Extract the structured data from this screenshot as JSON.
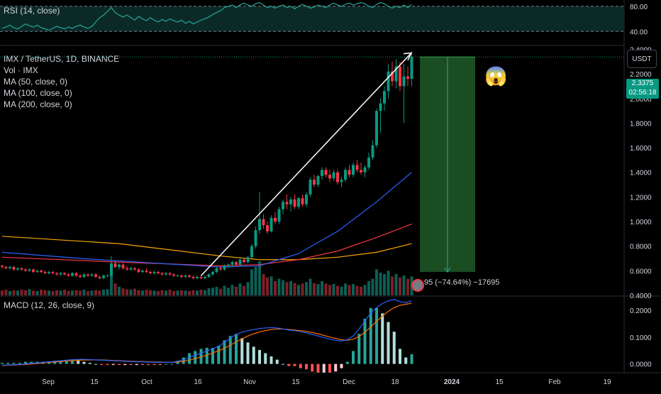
{
  "rsi": {
    "title": "RSI (14, close)",
    "levels": [
      "80.00",
      "40.00"
    ]
  },
  "main": {
    "title": "IMX / TetherUS, 1D, BINANCE",
    "studies": [
      "Vol · IMX",
      "MA (50, close, 0)",
      "MA (100, close, 0)",
      "MA (200, close, 0)"
    ],
    "unit_button": "USDT",
    "price_axis": [
      "2.4000",
      "2.2000",
      "2.0000",
      "1.8000",
      "1.6000",
      "1.4000",
      "1.2000",
      "1.0000",
      "0.8000",
      "0.6000",
      "0.4000"
    ],
    "last_price": "2.3375",
    "countdown": "02:56:18",
    "position_label": "95 (−74.64%) −17695",
    "emoji": "😱"
  },
  "macd": {
    "title": "MACD (12, 26, close, 9)",
    "axis": [
      "0.2000",
      "0.1000",
      "0.0000"
    ]
  },
  "time_axis": [
    "Sep",
    "15",
    "Oct",
    "16",
    "Nov",
    "15",
    "Dec",
    "18",
    "2024",
    "15",
    "Feb",
    "19"
  ],
  "colors": {
    "up": "#089981",
    "down": "#f23645",
    "ma50": "#2962ff",
    "ma100": "#f23645",
    "ma200": "#f7a600",
    "rsi": "#26a69a",
    "macd": "#2962ff",
    "signal": "#ff6d00",
    "short_zone": "#1b4d23"
  },
  "chart_data": {
    "type": "candlestick",
    "symbol": "IMX / TetherUS",
    "interval": "1D",
    "exchange": "BINANCE",
    "ylim": [
      0.4,
      2.42
    ],
    "candles": [
      [
        0.64,
        0.65,
        0.62,
        0.63
      ],
      [
        0.63,
        0.64,
        0.61,
        0.62
      ],
      [
        0.62,
        0.64,
        0.61,
        0.63
      ],
      [
        0.63,
        0.64,
        0.6,
        0.61
      ],
      [
        0.61,
        0.63,
        0.6,
        0.62
      ],
      [
        0.62,
        0.63,
        0.6,
        0.61
      ],
      [
        0.61,
        0.62,
        0.59,
        0.6
      ],
      [
        0.6,
        0.62,
        0.59,
        0.61
      ],
      [
        0.61,
        0.62,
        0.58,
        0.59
      ],
      [
        0.59,
        0.61,
        0.58,
        0.6
      ],
      [
        0.6,
        0.61,
        0.58,
        0.59
      ],
      [
        0.59,
        0.6,
        0.57,
        0.58
      ],
      [
        0.58,
        0.6,
        0.57,
        0.59
      ],
      [
        0.59,
        0.6,
        0.57,
        0.58
      ],
      [
        0.58,
        0.59,
        0.56,
        0.57
      ],
      [
        0.57,
        0.59,
        0.56,
        0.58
      ],
      [
        0.58,
        0.59,
        0.56,
        0.57
      ],
      [
        0.57,
        0.58,
        0.55,
        0.56
      ],
      [
        0.56,
        0.59,
        0.55,
        0.58
      ],
      [
        0.58,
        0.59,
        0.55,
        0.56
      ],
      [
        0.56,
        0.57,
        0.54,
        0.55
      ],
      [
        0.55,
        0.58,
        0.54,
        0.57
      ],
      [
        0.57,
        0.58,
        0.55,
        0.56
      ],
      [
        0.56,
        0.58,
        0.55,
        0.57
      ],
      [
        0.57,
        0.58,
        0.54,
        0.55
      ],
      [
        0.55,
        0.56,
        0.53,
        0.54
      ],
      [
        0.54,
        0.57,
        0.53,
        0.56
      ],
      [
        0.56,
        0.57,
        0.55,
        0.56
      ],
      [
        0.56,
        0.72,
        0.55,
        0.66
      ],
      [
        0.66,
        0.68,
        0.62,
        0.63
      ],
      [
        0.63,
        0.66,
        0.61,
        0.65
      ],
      [
        0.65,
        0.66,
        0.61,
        0.62
      ],
      [
        0.62,
        0.64,
        0.6,
        0.61
      ],
      [
        0.61,
        0.63,
        0.6,
        0.62
      ],
      [
        0.62,
        0.63,
        0.6,
        0.61
      ],
      [
        0.61,
        0.62,
        0.58,
        0.59
      ],
      [
        0.59,
        0.61,
        0.58,
        0.6
      ],
      [
        0.6,
        0.62,
        0.58,
        0.59
      ],
      [
        0.59,
        0.6,
        0.57,
        0.58
      ],
      [
        0.58,
        0.6,
        0.57,
        0.59
      ],
      [
        0.59,
        0.6,
        0.57,
        0.58
      ],
      [
        0.58,
        0.59,
        0.56,
        0.57
      ],
      [
        0.57,
        0.59,
        0.56,
        0.58
      ],
      [
        0.58,
        0.59,
        0.56,
        0.57
      ],
      [
        0.57,
        0.58,
        0.55,
        0.56
      ],
      [
        0.56,
        0.57,
        0.55,
        0.56
      ],
      [
        0.56,
        0.57,
        0.54,
        0.55
      ],
      [
        0.55,
        0.57,
        0.54,
        0.56
      ],
      [
        0.56,
        0.57,
        0.54,
        0.55
      ],
      [
        0.55,
        0.56,
        0.53,
        0.54
      ],
      [
        0.54,
        0.56,
        0.53,
        0.55
      ],
      [
        0.55,
        0.56,
        0.53,
        0.54
      ],
      [
        0.54,
        0.56,
        0.53,
        0.55
      ],
      [
        0.55,
        0.58,
        0.54,
        0.57
      ],
      [
        0.57,
        0.6,
        0.56,
        0.59
      ],
      [
        0.59,
        0.63,
        0.58,
        0.62
      ],
      [
        0.62,
        0.64,
        0.6,
        0.61
      ],
      [
        0.61,
        0.65,
        0.6,
        0.64
      ],
      [
        0.64,
        0.66,
        0.62,
        0.65
      ],
      [
        0.65,
        0.68,
        0.63,
        0.67
      ],
      [
        0.67,
        0.68,
        0.64,
        0.65
      ],
      [
        0.65,
        0.7,
        0.64,
        0.69
      ],
      [
        0.69,
        0.7,
        0.66,
        0.67
      ],
      [
        0.67,
        0.72,
        0.66,
        0.71
      ],
      [
        0.71,
        0.82,
        0.7,
        0.8
      ],
      [
        0.8,
        0.96,
        0.78,
        0.93
      ],
      [
        0.93,
        1.24,
        0.9,
        1.02
      ],
      [
        1.02,
        1.06,
        0.94,
        0.97
      ],
      [
        0.97,
        1.0,
        0.9,
        0.92
      ],
      [
        0.92,
        1.05,
        0.91,
        1.03
      ],
      [
        1.03,
        1.08,
        0.98,
        1.0
      ],
      [
        1.0,
        1.12,
        0.98,
        1.1
      ],
      [
        1.1,
        1.18,
        1.06,
        1.16
      ],
      [
        1.16,
        1.22,
        1.1,
        1.14
      ],
      [
        1.14,
        1.2,
        1.08,
        1.18
      ],
      [
        1.18,
        1.22,
        1.1,
        1.12
      ],
      [
        1.12,
        1.2,
        1.1,
        1.19
      ],
      [
        1.19,
        1.22,
        1.12,
        1.14
      ],
      [
        1.14,
        1.24,
        1.12,
        1.22
      ],
      [
        1.22,
        1.36,
        1.2,
        1.34
      ],
      [
        1.34,
        1.38,
        1.28,
        1.3
      ],
      [
        1.3,
        1.38,
        1.28,
        1.37
      ],
      [
        1.37,
        1.44,
        1.34,
        1.42
      ],
      [
        1.42,
        1.44,
        1.36,
        1.38
      ],
      [
        1.38,
        1.42,
        1.32,
        1.35
      ],
      [
        1.35,
        1.42,
        1.33,
        1.4
      ],
      [
        1.4,
        1.42,
        1.3,
        1.32
      ],
      [
        1.32,
        1.36,
        1.28,
        1.34
      ],
      [
        1.34,
        1.44,
        1.32,
        1.42
      ],
      [
        1.42,
        1.46,
        1.36,
        1.38
      ],
      [
        1.38,
        1.48,
        1.36,
        1.46
      ],
      [
        1.46,
        1.5,
        1.4,
        1.42
      ],
      [
        1.42,
        1.48,
        1.38,
        1.4
      ],
      [
        1.4,
        1.46,
        1.36,
        1.44
      ],
      [
        1.44,
        1.56,
        1.42,
        1.52
      ],
      [
        1.52,
        1.66,
        1.5,
        1.62
      ],
      [
        1.62,
        1.92,
        1.6,
        1.9
      ],
      [
        1.9,
        2.0,
        1.72,
        1.96
      ],
      [
        1.96,
        2.1,
        1.9,
        2.06
      ],
      [
        2.06,
        2.28,
        2.0,
        2.22
      ],
      [
        2.22,
        2.3,
        2.1,
        2.14
      ],
      [
        2.14,
        2.32,
        2.08,
        2.26
      ],
      [
        2.26,
        2.3,
        2.06,
        2.1
      ],
      [
        2.1,
        2.28,
        1.8,
        2.18
      ],
      [
        2.18,
        2.26,
        2.1,
        2.16
      ],
      [
        2.16,
        2.38,
        2.1,
        2.34
      ]
    ],
    "volume": [
      0.1,
      0.12,
      0.09,
      0.11,
      0.1,
      0.12,
      0.11,
      0.13,
      0.1,
      0.09,
      0.12,
      0.11,
      0.1,
      0.09,
      0.11,
      0.1,
      0.12,
      0.09,
      0.1,
      0.11,
      0.1,
      0.12,
      0.09,
      0.1,
      0.11,
      0.1,
      0.12,
      0.13,
      0.62,
      0.25,
      0.18,
      0.15,
      0.13,
      0.12,
      0.14,
      0.11,
      0.1,
      0.12,
      0.11,
      0.1,
      0.09,
      0.11,
      0.1,
      0.12,
      0.09,
      0.1,
      0.11,
      0.1,
      0.09,
      0.11,
      0.1,
      0.12,
      0.11,
      0.15,
      0.16,
      0.18,
      0.14,
      0.2,
      0.16,
      0.22,
      0.18,
      0.25,
      0.2,
      0.28,
      0.55,
      0.6,
      0.72,
      0.45,
      0.38,
      0.4,
      0.3,
      0.35,
      0.32,
      0.28,
      0.3,
      0.26,
      0.22,
      0.25,
      0.28,
      0.35,
      0.26,
      0.24,
      0.3,
      0.25,
      0.22,
      0.24,
      0.2,
      0.18,
      0.25,
      0.22,
      0.24,
      0.2,
      0.18,
      0.22,
      0.3,
      0.35,
      0.55,
      0.48,
      0.45,
      0.52,
      0.4,
      0.45,
      0.38,
      0.42,
      0.35,
      0.4
    ],
    "ma50": [
      [
        0,
        0.75
      ],
      [
        20,
        0.7
      ],
      [
        40,
        0.66
      ],
      [
        56,
        0.63
      ],
      [
        66,
        0.64
      ],
      [
        76,
        0.74
      ],
      [
        86,
        0.92
      ],
      [
        96,
        1.16
      ],
      [
        105,
        1.4
      ]
    ],
    "ma100": [
      [
        0,
        0.71
      ],
      [
        30,
        0.67
      ],
      [
        56,
        0.64
      ],
      [
        66,
        0.65
      ],
      [
        76,
        0.69
      ],
      [
        86,
        0.76
      ],
      [
        96,
        0.87
      ],
      [
        105,
        0.98
      ]
    ],
    "ma200": [
      [
        0,
        0.88
      ],
      [
        30,
        0.82
      ],
      [
        56,
        0.72
      ],
      [
        66,
        0.69
      ],
      [
        76,
        0.69
      ],
      [
        86,
        0.71
      ],
      [
        96,
        0.75
      ],
      [
        105,
        0.82
      ]
    ],
    "rsi": {
      "ylim": [
        20,
        90
      ],
      "values": [
        45,
        47,
        50,
        46,
        44,
        48,
        52,
        49,
        47,
        50,
        46,
        44,
        42,
        45,
        48,
        46,
        44,
        47,
        45,
        48,
        50,
        47,
        45,
        48,
        55,
        62,
        66,
        72,
        78,
        70,
        66,
        63,
        66,
        62,
        58,
        64,
        60,
        57,
        62,
        58,
        55,
        59,
        56,
        60,
        57,
        55,
        58,
        53,
        56,
        52,
        55,
        58,
        60,
        63,
        67,
        70,
        73,
        78,
        80,
        82,
        78,
        82,
        85,
        82,
        80,
        84,
        86,
        82,
        78,
        80,
        77,
        80,
        82,
        78,
        80,
        76,
        80,
        83,
        80,
        77,
        79,
        82,
        80,
        78,
        82,
        85,
        82,
        80,
        83,
        85,
        82,
        84,
        86,
        84,
        80,
        78,
        83,
        86,
        84,
        80,
        77,
        80,
        78,
        82,
        78,
        83
      ]
    },
    "macd": {
      "ylim": [
        -0.03,
        0.25
      ],
      "macd": [
        -0.005,
        -0.004,
        -0.003,
        -0.002,
        0.0,
        0.002,
        0.004,
        0.006,
        0.008,
        0.01,
        0.012,
        0.014,
        0.016,
        0.017,
        0.017,
        0.016,
        0.015,
        0.014,
        0.013,
        0.012,
        0.011,
        0.01,
        0.009,
        0.008,
        0.008,
        0.007,
        0.006,
        0.006,
        0.006,
        0.006,
        0.01,
        0.016,
        0.024,
        0.032,
        0.04,
        0.048,
        0.056,
        0.066,
        0.08,
        0.096,
        0.11,
        0.118,
        0.124,
        0.128,
        0.132,
        0.134,
        0.135,
        0.134,
        0.13,
        0.126,
        0.124,
        0.12,
        0.116,
        0.11,
        0.104,
        0.098,
        0.092,
        0.088,
        0.086,
        0.09,
        0.104,
        0.13,
        0.16,
        0.19,
        0.21,
        0.225,
        0.235,
        0.24,
        0.232,
        0.228,
        0.235
      ],
      "signal": [
        -0.006,
        -0.005,
        -0.004,
        -0.003,
        -0.002,
        0.0,
        0.002,
        0.004,
        0.006,
        0.007,
        0.009,
        0.011,
        0.012,
        0.014,
        0.015,
        0.015,
        0.015,
        0.015,
        0.014,
        0.013,
        0.012,
        0.011,
        0.01,
        0.009,
        0.009,
        0.008,
        0.007,
        0.007,
        0.006,
        0.006,
        0.007,
        0.01,
        0.014,
        0.02,
        0.026,
        0.033,
        0.041,
        0.049,
        0.058,
        0.07,
        0.082,
        0.094,
        0.104,
        0.112,
        0.119,
        0.124,
        0.128,
        0.13,
        0.13,
        0.128,
        0.126,
        0.124,
        0.121,
        0.117,
        0.112,
        0.106,
        0.1,
        0.095,
        0.09,
        0.088,
        0.092,
        0.102,
        0.118,
        0.138,
        0.158,
        0.178,
        0.196,
        0.21,
        0.218,
        0.222,
        0.226
      ]
    },
    "position": {
      "entry": 2.3375,
      "target": 0.59
    }
  }
}
